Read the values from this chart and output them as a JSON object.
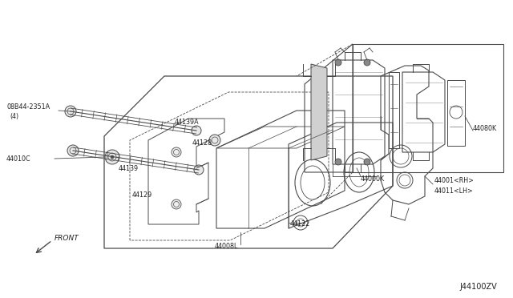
{
  "diagram_id": "J44100ZV",
  "background_color": "#ffffff",
  "line_color": "#4a4a4a",
  "text_color": "#222222",
  "figsize": [
    6.4,
    3.72
  ],
  "dpi": 100,
  "labels": {
    "bolt_label": "08B44-2351A",
    "bolt_qty": "(4)",
    "p44010C": "44010C",
    "p44139A": "44139A",
    "p44128": "44128",
    "p44139": "44139",
    "p44129": "44129",
    "p44122": "44122",
    "p44008L": "44008L",
    "p44001RH": "44001<RH>",
    "p44011LH": "44011<LH>",
    "p44000K": "44000K",
    "p44080K": "44080K",
    "front": "FRONT"
  }
}
